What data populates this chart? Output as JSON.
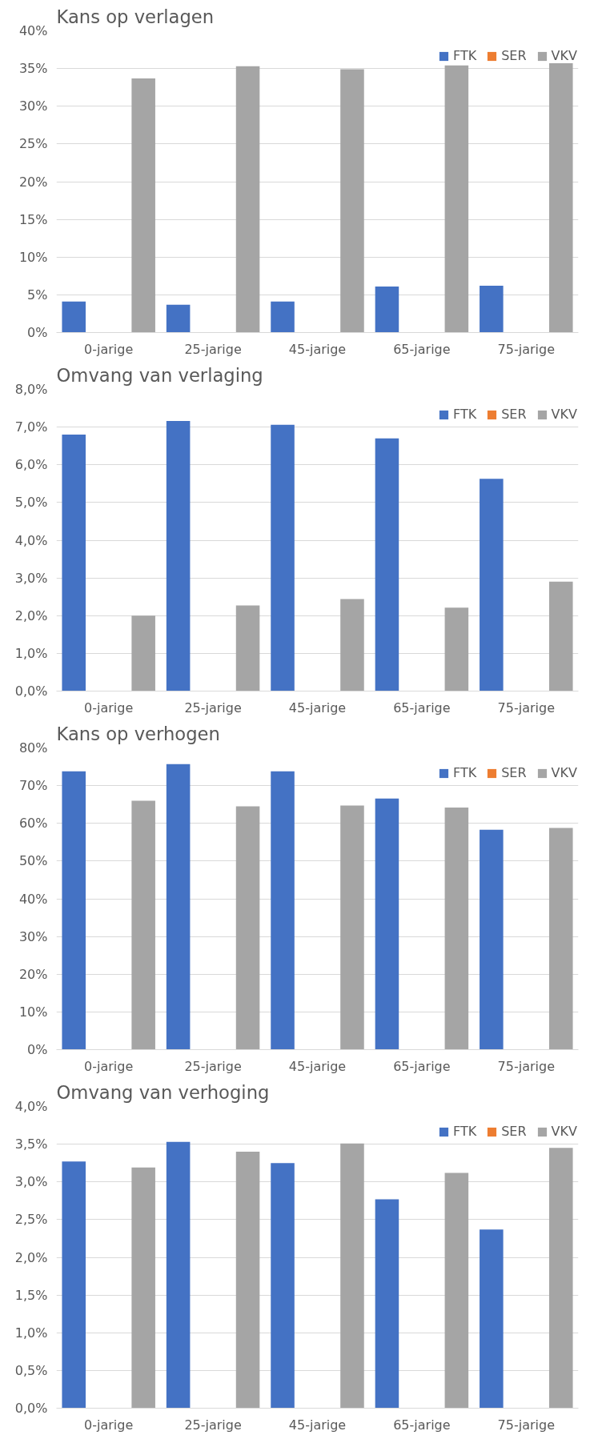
{
  "chart_data": [
    {
      "type": "bar",
      "title": "Kans op verlagen",
      "categories": [
        "0-jarige",
        "25-jarige",
        "45-jarige",
        "65-jarige",
        "75-jarige"
      ],
      "series": [
        {
          "name": "FTK",
          "color": "#4472c4",
          "values": [
            4.1,
            3.7,
            4.1,
            6.1,
            6.2
          ]
        },
        {
          "name": "SER",
          "color": "#ed7d31",
          "values": [
            null,
            null,
            null,
            null,
            null
          ]
        },
        {
          "name": "VKV",
          "color": "#a5a5a5",
          "values": [
            33.7,
            35.3,
            34.9,
            35.4,
            35.9
          ]
        }
      ],
      "ylim": [
        0,
        40
      ],
      "yticks": [
        {
          "value": 0,
          "label": "0%"
        },
        {
          "value": 5,
          "label": "5%"
        },
        {
          "value": 10,
          "label": "10%"
        },
        {
          "value": 15,
          "label": "15%"
        },
        {
          "value": 20,
          "label": "20%"
        },
        {
          "value": 25,
          "label": "25%"
        },
        {
          "value": 30,
          "label": "30%"
        },
        {
          "value": 35,
          "label": "35%"
        },
        {
          "value": 40,
          "label": "40%"
        }
      ],
      "grid": "y",
      "legend": "top right"
    },
    {
      "type": "bar",
      "title": "Omvang van verlaging",
      "categories": [
        "0-jarige",
        "25-jarige",
        "45-jarige",
        "65-jarige",
        "75-jarige"
      ],
      "series": [
        {
          "name": "FTK",
          "color": "#4472c4",
          "values": [
            6.8,
            7.16,
            7.06,
            6.7,
            5.63
          ]
        },
        {
          "name": "SER",
          "color": "#ed7d31",
          "values": [
            null,
            null,
            null,
            null,
            null
          ]
        },
        {
          "name": "VKV",
          "color": "#a5a5a5",
          "values": [
            2.0,
            2.27,
            2.44,
            2.21,
            2.9
          ]
        }
      ],
      "ylim": [
        0,
        8
      ],
      "yticks": [
        {
          "value": 0,
          "label": "0,0%"
        },
        {
          "value": 1,
          "label": "1,0%"
        },
        {
          "value": 2,
          "label": "2,0%"
        },
        {
          "value": 3,
          "label": "3,0%"
        },
        {
          "value": 4,
          "label": "4,0%"
        },
        {
          "value": 5,
          "label": "5,0%"
        },
        {
          "value": 6,
          "label": "6,0%"
        },
        {
          "value": 7,
          "label": "7,0%"
        },
        {
          "value": 8,
          "label": "8,0%"
        }
      ],
      "grid": "y",
      "legend": "top right"
    },
    {
      "type": "bar",
      "title": "Kans op verhogen",
      "categories": [
        "0-jarige",
        "25-jarige",
        "45-jarige",
        "65-jarige",
        "75-jarige"
      ],
      "series": [
        {
          "name": "FTK",
          "color": "#4472c4",
          "values": [
            73.8,
            75.7,
            73.8,
            66.6,
            58.3
          ]
        },
        {
          "name": "SER",
          "color": "#ed7d31",
          "values": [
            null,
            null,
            null,
            null,
            null
          ]
        },
        {
          "name": "VKV",
          "color": "#a5a5a5",
          "values": [
            66.0,
            64.5,
            64.7,
            64.2,
            58.8
          ]
        }
      ],
      "ylim": [
        0,
        80
      ],
      "yticks": [
        {
          "value": 0,
          "label": "0%"
        },
        {
          "value": 10,
          "label": "10%"
        },
        {
          "value": 20,
          "label": "20%"
        },
        {
          "value": 30,
          "label": "30%"
        },
        {
          "value": 40,
          "label": "40%"
        },
        {
          "value": 50,
          "label": "50%"
        },
        {
          "value": 60,
          "label": "60%"
        },
        {
          "value": 70,
          "label": "70%"
        },
        {
          "value": 80,
          "label": "80%"
        }
      ],
      "grid": "y",
      "legend": "top right"
    },
    {
      "type": "bar",
      "title": "Omvang van verhoging",
      "categories": [
        "0-jarige",
        "25-jarige",
        "45-jarige",
        "65-jarige",
        "75-jarige"
      ],
      "series": [
        {
          "name": "FTK",
          "color": "#4472c4",
          "values": [
            3.27,
            3.53,
            3.25,
            2.77,
            2.37
          ]
        },
        {
          "name": "SER",
          "color": "#ed7d31",
          "values": [
            null,
            null,
            null,
            null,
            null
          ]
        },
        {
          "name": "VKV",
          "color": "#a5a5a5",
          "values": [
            3.19,
            3.4,
            3.51,
            3.12,
            3.45
          ]
        }
      ],
      "ylim": [
        0,
        4
      ],
      "yticks": [
        {
          "value": 0,
          "label": "0,0%"
        },
        {
          "value": 0.5,
          "label": "0,5%"
        },
        {
          "value": 1,
          "label": "1,0%"
        },
        {
          "value": 1.5,
          "label": "1,5%"
        },
        {
          "value": 2,
          "label": "2,0%"
        },
        {
          "value": 2.5,
          "label": "2,5%"
        },
        {
          "value": 3,
          "label": "3,0%"
        },
        {
          "value": 3.5,
          "label": "3,5%"
        },
        {
          "value": 4,
          "label": "4,0%"
        }
      ],
      "grid": "y",
      "legend": "top right"
    }
  ]
}
